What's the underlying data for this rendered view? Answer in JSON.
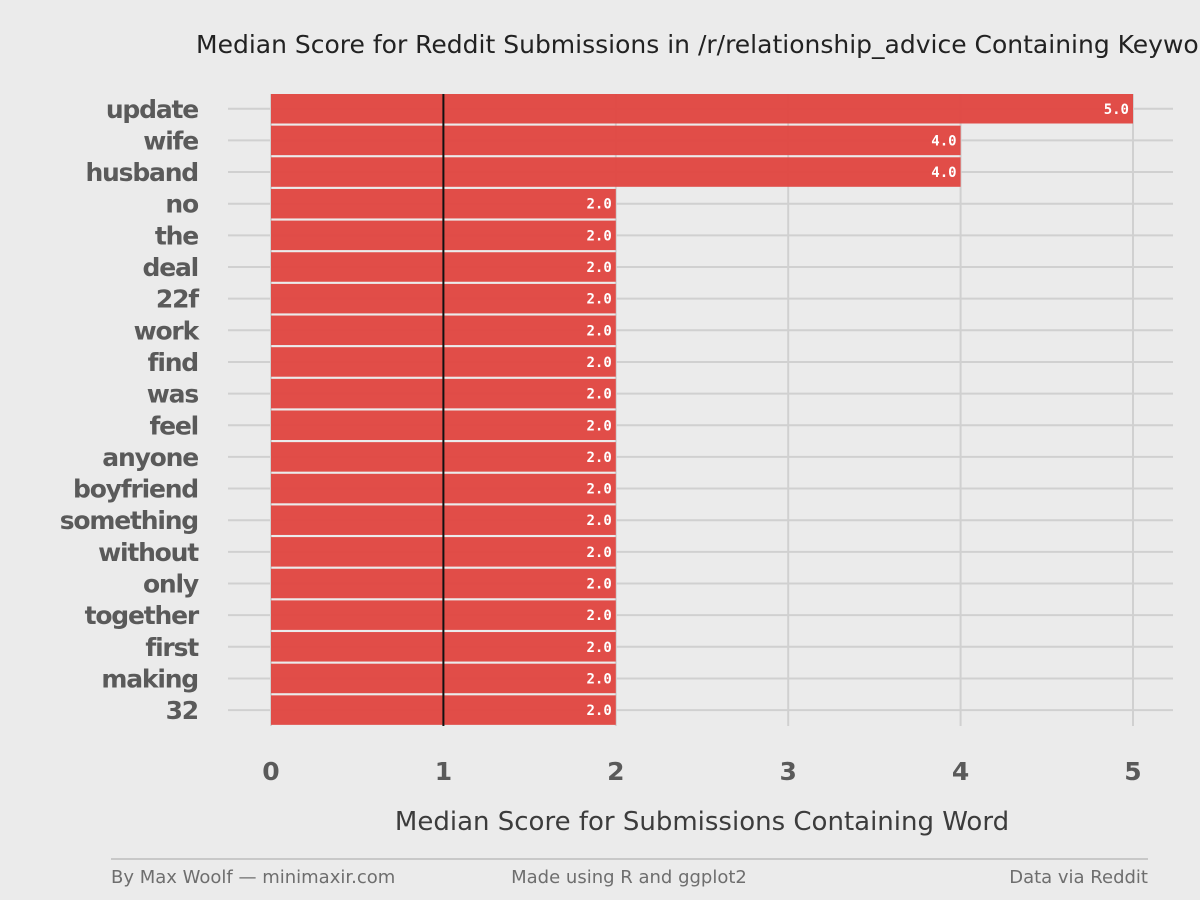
{
  "chart_data": {
    "type": "bar",
    "orientation": "horizontal",
    "title": "Median Score for Reddit Submissions in /r/relationship_advice Containing Keyword",
    "xlabel": "Median Score for Submissions Containing Word",
    "ylabel": "",
    "categories": [
      "update",
      "wife",
      "husband",
      "no",
      "the",
      "deal",
      "22f",
      "work",
      "find",
      "was",
      "feel",
      "anyone",
      "boyfriend",
      "something",
      "without",
      "only",
      "together",
      "first",
      "making",
      "32"
    ],
    "values": [
      5.0,
      4.0,
      4.0,
      2.0,
      2.0,
      2.0,
      2.0,
      2.0,
      2.0,
      2.0,
      2.0,
      2.0,
      2.0,
      2.0,
      2.0,
      2.0,
      2.0,
      2.0,
      2.0,
      2.0
    ],
    "data_labels": [
      "5.0",
      "4.0",
      "4.0",
      "2.0",
      "2.0",
      "2.0",
      "2.0",
      "2.0",
      "2.0",
      "2.0",
      "2.0",
      "2.0",
      "2.0",
      "2.0",
      "2.0",
      "2.0",
      "2.0",
      "2.0",
      "2.0",
      "2.0"
    ],
    "xlim": [
      0,
      5
    ],
    "xticks": [
      "0",
      "1",
      "2",
      "3",
      "4",
      "5"
    ],
    "reference_line": 1,
    "grid": true,
    "bar_color": "#e0453f",
    "reference_line_color": "#111111",
    "grid_color": "#d0d0d0"
  },
  "footer": {
    "left": "By Max Woolf — minimaxir.com",
    "center": "Made using R and ggplot2",
    "right": "Data via Reddit"
  }
}
